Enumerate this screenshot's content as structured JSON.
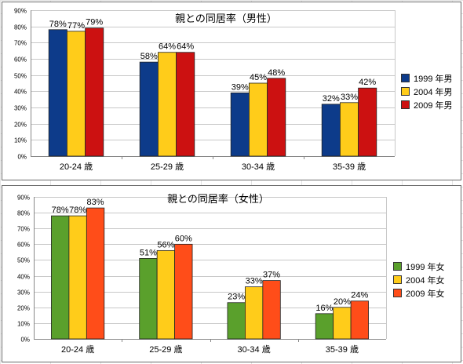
{
  "chart_data": [
    {
      "type": "bar",
      "title": "親との同居率（男性）",
      "categories": [
        "20-24 歳",
        "25-29 歳",
        "30-34 歳",
        "35-39 歳"
      ],
      "ylim": [
        0,
        90
      ],
      "yticks": [
        0,
        10,
        20,
        30,
        40,
        50,
        60,
        70,
        80,
        90
      ],
      "ytick_format": "%",
      "grid": true,
      "legend_position": "right",
      "series": [
        {
          "name": "1999 年男",
          "color": "#0d3b8a",
          "values": [
            78,
            58,
            39,
            32
          ]
        },
        {
          "name": "2004 年男",
          "color": "#ffcc1a",
          "values": [
            77,
            64,
            45,
            33
          ]
        },
        {
          "name": "2009 年男",
          "color": "#cc1111",
          "values": [
            79,
            64,
            48,
            42
          ]
        }
      ]
    },
    {
      "type": "bar",
      "title": "親との同居率（女性）",
      "categories": [
        "20-24 歳",
        "25-29 歳",
        "30-34 歳",
        "35-39 歳"
      ],
      "ylim": [
        0,
        90
      ],
      "yticks": [
        0,
        10,
        20,
        30,
        40,
        50,
        60,
        70,
        80,
        90
      ],
      "ytick_format": "%",
      "grid": true,
      "legend_position": "right",
      "series": [
        {
          "name": "1999 年女",
          "color": "#5aa02c",
          "values": [
            78,
            51,
            23,
            16
          ]
        },
        {
          "name": "2004 年女",
          "color": "#ffcc1a",
          "values": [
            78,
            56,
            33,
            20
          ]
        },
        {
          "name": "2009 年女",
          "color": "#ff4d19",
          "values": [
            83,
            60,
            37,
            24
          ]
        }
      ]
    }
  ]
}
